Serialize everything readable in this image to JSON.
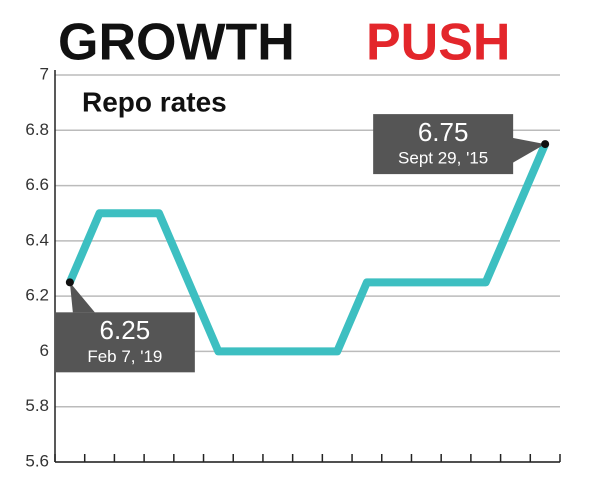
{
  "chart_data": {
    "type": "line",
    "title": "GROWTH",
    "title_highlight": "PUSH",
    "subtitle": "Repo rates",
    "categories": [
      null,
      null,
      null,
      null,
      null,
      null,
      null,
      null,
      null,
      null,
      null,
      null,
      null,
      null,
      null,
      null,
      null
    ],
    "series": [
      {
        "color": "#3dbfc1",
        "values": [
          6.25,
          6.5,
          6.5,
          6.5,
          6.25,
          6.0,
          6.0,
          6.0,
          6.0,
          6.0,
          6.25,
          6.25,
          6.25,
          6.25,
          6.25,
          6.5,
          6.75
        ],
        "point_labels": [
          "Feb 7, '19",
          null,
          null,
          null,
          null,
          null,
          null,
          null,
          null,
          null,
          null,
          null,
          null,
          null,
          null,
          null,
          "Sept 29, '15"
        ]
      }
    ],
    "ylim": [
      5.6,
      7
    ],
    "yticks": [
      5.6,
      5.8,
      6,
      6.2,
      6.4,
      6.6,
      6.8,
      7
    ],
    "grid": true
  }
}
